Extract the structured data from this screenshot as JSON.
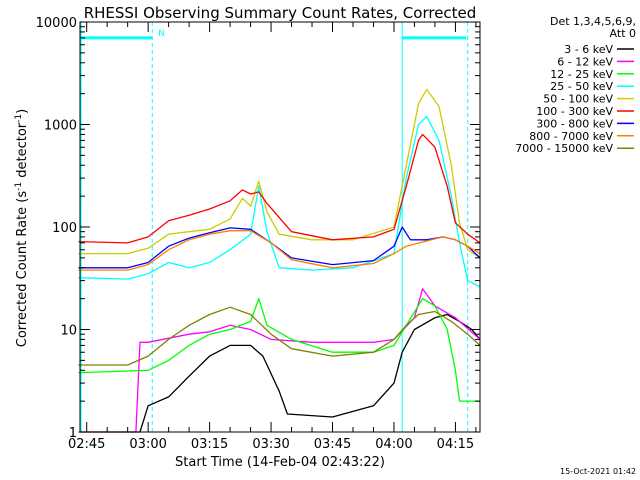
{
  "chart_data": {
    "type": "line",
    "title": "RHESSI Observing Summary Count Rates, Corrected",
    "xlabel": "Start Time (14-Feb-04 02:43:22)",
    "ylabel": "Corrected Count Rate (s",
    "ylabel_sup": "-1",
    "ylabel_mid": " detector",
    "ylabel_end": ")",
    "y_scale": "log",
    "xlim": [
      "02:43:22",
      "04:21:00"
    ],
    "ylim": [
      1,
      10000
    ],
    "x_ticks": [
      "02:45",
      "03:00",
      "03:15",
      "03:30",
      "03:45",
      "04:00",
      "04:15"
    ],
    "y_ticks": [
      "1",
      "10",
      "100",
      "1000",
      "10000"
    ],
    "legend_header": [
      "Det 1,3,4,5,6,9,",
      "Att 0"
    ],
    "legend_position": "right",
    "footer": "15-Oct-2021 01:42",
    "flags": {
      "label": "N",
      "night_start": "03:01",
      "night_end": "04:02",
      "saa_start": "04:18"
    },
    "series": [
      {
        "name": "3 - 6 keV",
        "color": "#000000",
        "points": [
          [
            "02:43",
            1
          ],
          [
            "02:58",
            1
          ],
          [
            "03:00",
            1.8
          ],
          [
            "03:05",
            2.2
          ],
          [
            "03:10",
            3.5
          ],
          [
            "03:15",
            5.5
          ],
          [
            "03:20",
            7
          ],
          [
            "03:25",
            7
          ],
          [
            "03:28",
            5.5
          ],
          [
            "03:32",
            2.5
          ],
          [
            "03:34",
            1.5
          ],
          [
            "03:45",
            1.4
          ],
          [
            "03:55",
            1.8
          ],
          [
            "04:00",
            3
          ],
          [
            "04:02",
            6
          ],
          [
            "04:05",
            10
          ],
          [
            "04:10",
            13
          ],
          [
            "04:13",
            14
          ],
          [
            "04:16",
            12
          ],
          [
            "04:19",
            10
          ],
          [
            "04:21",
            8
          ]
        ]
      },
      {
        "name": "6 - 12 keV",
        "color": "#ff00ff",
        "points": [
          [
            "02:43",
            1
          ],
          [
            "02:57",
            1
          ],
          [
            "02:58",
            7.5
          ],
          [
            "03:00",
            7.5
          ],
          [
            "03:10",
            9
          ],
          [
            "03:15",
            9.5
          ],
          [
            "03:20",
            11
          ],
          [
            "03:25",
            10
          ],
          [
            "03:30",
            8
          ],
          [
            "03:40",
            7.5
          ],
          [
            "03:55",
            7.5
          ],
          [
            "04:00",
            8
          ],
          [
            "04:05",
            13
          ],
          [
            "04:07",
            25
          ],
          [
            "04:10",
            17
          ],
          [
            "04:15",
            13
          ],
          [
            "04:21",
            8
          ]
        ]
      },
      {
        "name": "12 - 25 keV",
        "color": "#00ff00",
        "points": [
          [
            "02:43",
            3.8
          ],
          [
            "03:00",
            4
          ],
          [
            "03:05",
            5
          ],
          [
            "03:10",
            7
          ],
          [
            "03:15",
            9
          ],
          [
            "03:20",
            10
          ],
          [
            "03:25",
            12
          ],
          [
            "03:27",
            20
          ],
          [
            "03:29",
            11
          ],
          [
            "03:35",
            8
          ],
          [
            "03:45",
            6
          ],
          [
            "03:55",
            6
          ],
          [
            "04:00",
            7
          ],
          [
            "04:03",
            11
          ],
          [
            "04:07",
            20
          ],
          [
            "04:10",
            17
          ],
          [
            "04:13",
            10
          ],
          [
            "04:15",
            4
          ],
          [
            "04:16",
            2
          ],
          [
            "04:21",
            2
          ]
        ]
      },
      {
        "name": "25 - 50 keV",
        "color": "#00ffff",
        "points": [
          [
            "02:43",
            32
          ],
          [
            "02:55",
            31
          ],
          [
            "03:00",
            35
          ],
          [
            "03:05",
            45
          ],
          [
            "03:10",
            40
          ],
          [
            "03:15",
            45
          ],
          [
            "03:20",
            60
          ],
          [
            "03:25",
            85
          ],
          [
            "03:27",
            250
          ],
          [
            "03:29",
            90
          ],
          [
            "03:32",
            40
          ],
          [
            "03:40",
            38
          ],
          [
            "03:50",
            40
          ],
          [
            "04:00",
            55
          ],
          [
            "04:03",
            300
          ],
          [
            "04:06",
            1000
          ],
          [
            "04:08",
            1200
          ],
          [
            "04:11",
            700
          ],
          [
            "04:14",
            200
          ],
          [
            "04:16",
            70
          ],
          [
            "04:18",
            30
          ],
          [
            "04:21",
            26
          ]
        ]
      },
      {
        "name": "50 - 100 keV",
        "color": "#cccc00",
        "points": [
          [
            "02:43",
            55
          ],
          [
            "02:55",
            55
          ],
          [
            "03:00",
            62
          ],
          [
            "03:05",
            85
          ],
          [
            "03:10",
            90
          ],
          [
            "03:15",
            95
          ],
          [
            "03:20",
            120
          ],
          [
            "03:23",
            190
          ],
          [
            "03:25",
            160
          ],
          [
            "03:27",
            280
          ],
          [
            "03:29",
            140
          ],
          [
            "03:32",
            85
          ],
          [
            "03:40",
            75
          ],
          [
            "03:50",
            75
          ],
          [
            "04:00",
            100
          ],
          [
            "04:03",
            400
          ],
          [
            "04:06",
            1600
          ],
          [
            "04:08",
            2200
          ],
          [
            "04:11",
            1500
          ],
          [
            "04:14",
            400
          ],
          [
            "04:16",
            110
          ],
          [
            "04:18",
            60
          ],
          [
            "04:21",
            50
          ]
        ]
      },
      {
        "name": "100 - 300 keV",
        "color": "#ff0000",
        "points": [
          [
            "02:43",
            72
          ],
          [
            "02:55",
            70
          ],
          [
            "03:00",
            80
          ],
          [
            "03:05",
            115
          ],
          [
            "03:10",
            130
          ],
          [
            "03:15",
            150
          ],
          [
            "03:20",
            180
          ],
          [
            "03:23",
            230
          ],
          [
            "03:25",
            210
          ],
          [
            "03:27",
            220
          ],
          [
            "03:29",
            170
          ],
          [
            "03:35",
            90
          ],
          [
            "03:45",
            75
          ],
          [
            "03:55",
            80
          ],
          [
            "04:00",
            95
          ],
          [
            "04:03",
            250
          ],
          [
            "04:06",
            700
          ],
          [
            "04:07",
            800
          ],
          [
            "04:10",
            600
          ],
          [
            "04:13",
            250
          ],
          [
            "04:15",
            110
          ],
          [
            "04:18",
            85
          ],
          [
            "04:21",
            70
          ]
        ]
      },
      {
        "name": "300 - 800 keV",
        "color": "#0000ff",
        "points": [
          [
            "02:43",
            40
          ],
          [
            "02:55",
            40
          ],
          [
            "03:00",
            45
          ],
          [
            "03:05",
            65
          ],
          [
            "03:10",
            78
          ],
          [
            "03:15",
            88
          ],
          [
            "03:20",
            98
          ],
          [
            "03:25",
            95
          ],
          [
            "03:30",
            70
          ],
          [
            "03:35",
            50
          ],
          [
            "03:45",
            43
          ],
          [
            "03:55",
            47
          ],
          [
            "04:00",
            65
          ],
          [
            "04:02",
            100
          ],
          [
            "04:04",
            75
          ],
          [
            "04:08",
            75
          ],
          [
            "04:12",
            80
          ],
          [
            "04:15",
            75
          ],
          [
            "04:18",
            65
          ],
          [
            "04:21",
            50
          ]
        ]
      },
      {
        "name": "800 - 7000 keV",
        "color": "#ff8000",
        "points": [
          [
            "02:43",
            38
          ],
          [
            "02:55",
            38
          ],
          [
            "03:00",
            43
          ],
          [
            "03:05",
            60
          ],
          [
            "03:10",
            75
          ],
          [
            "03:15",
            85
          ],
          [
            "03:20",
            92
          ],
          [
            "03:25",
            92
          ],
          [
            "03:30",
            70
          ],
          [
            "03:35",
            48
          ],
          [
            "03:45",
            40
          ],
          [
            "03:55",
            44
          ],
          [
            "04:00",
            55
          ],
          [
            "04:03",
            65
          ],
          [
            "04:08",
            73
          ],
          [
            "04:12",
            80
          ],
          [
            "04:15",
            75
          ],
          [
            "04:18",
            65
          ],
          [
            "04:21",
            55
          ]
        ]
      },
      {
        "name": "7000 - 15000 keV",
        "color": "#808000",
        "points": [
          [
            "02:43",
            4.5
          ],
          [
            "02:55",
            4.5
          ],
          [
            "03:00",
            5.5
          ],
          [
            "03:05",
            8
          ],
          [
            "03:10",
            11
          ],
          [
            "03:15",
            14
          ],
          [
            "03:20",
            16.5
          ],
          [
            "03:25",
            14
          ],
          [
            "03:30",
            9
          ],
          [
            "03:35",
            6.5
          ],
          [
            "03:45",
            5.5
          ],
          [
            "03:55",
            6
          ],
          [
            "04:00",
            8
          ],
          [
            "04:03",
            11
          ],
          [
            "04:06",
            14
          ],
          [
            "04:10",
            15
          ],
          [
            "04:14",
            12
          ],
          [
            "04:18",
            9
          ],
          [
            "04:21",
            7
          ]
        ]
      }
    ]
  }
}
